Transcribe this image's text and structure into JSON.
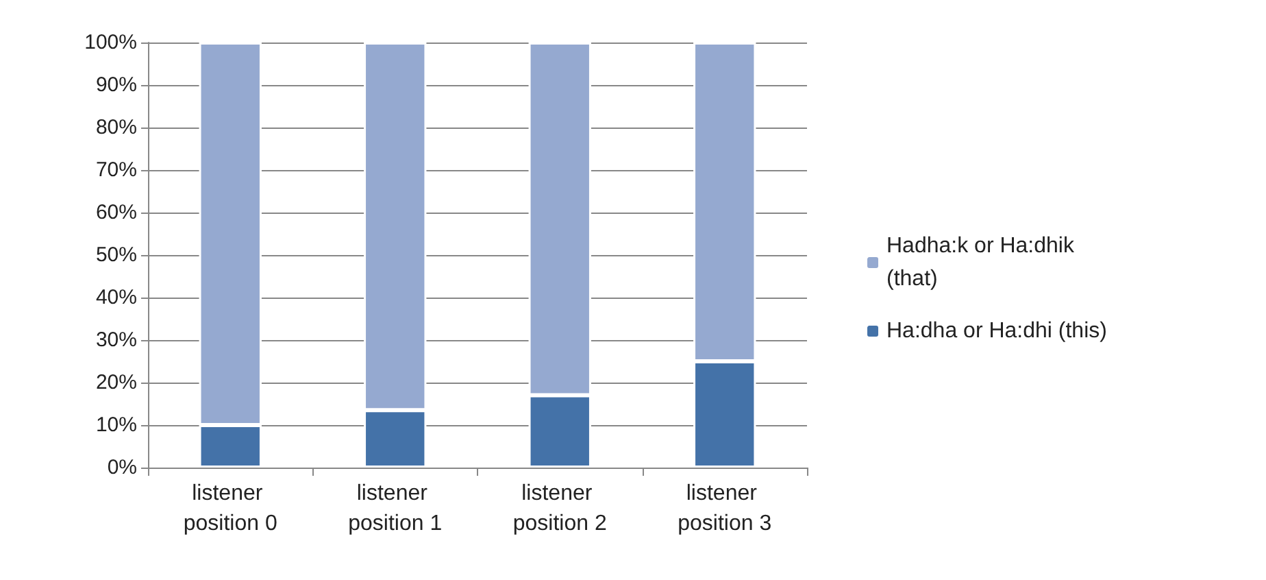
{
  "chart_data": {
    "type": "bar",
    "stacked": true,
    "categories": [
      "listener position 0",
      "listener position 1",
      "listener position 2",
      "listener position 3"
    ],
    "series": [
      {
        "name": "Ha:dha or Ha:dhi (this)",
        "color": "#4472a8",
        "values": [
          10,
          13.5,
          17,
          25
        ]
      },
      {
        "name": "Hadha:k or Ha:dhik (that)",
        "color": "#95a9d0",
        "values": [
          90,
          86.5,
          83,
          75
        ]
      }
    ],
    "ylim": [
      0,
      100
    ],
    "yticks": [
      {
        "value": 0,
        "label": "0%"
      },
      {
        "value": 10,
        "label": "10%"
      },
      {
        "value": 20,
        "label": "20%"
      },
      {
        "value": 30,
        "label": "30%"
      },
      {
        "value": 40,
        "label": "40%"
      },
      {
        "value": 50,
        "label": "50%"
      },
      {
        "value": 60,
        "label": "60%"
      },
      {
        "value": 70,
        "label": "70%"
      },
      {
        "value": 80,
        "label": "80%"
      },
      {
        "value": 90,
        "label": "90%"
      },
      {
        "value": 100,
        "label": "100%"
      }
    ],
    "grid": "y",
    "legend": "right"
  }
}
